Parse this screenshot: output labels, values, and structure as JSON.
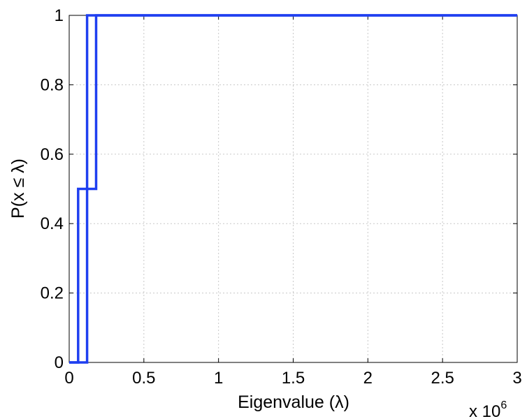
{
  "chart_data": {
    "type": "line",
    "xlabel": "Eigenvalue (λ)",
    "ylabel": "P(x ≤ λ)",
    "x_multiplier_base": "x 10",
    "x_multiplier_exp": "6",
    "xlim": [
      0,
      3
    ],
    "ylim": [
      0,
      1
    ],
    "xticks": [
      0,
      0.5,
      1,
      1.5,
      2,
      2.5,
      3
    ],
    "xtick_labels": [
      "0",
      "0.5",
      "1",
      "1.5",
      "2",
      "2.5",
      "3"
    ],
    "yticks": [
      0,
      0.2,
      0.4,
      0.6,
      0.8,
      1
    ],
    "ytick_labels": [
      "0",
      "0.2",
      "0.4",
      "0.6",
      "0.8",
      "1"
    ],
    "grid": true,
    "series": [
      {
        "color": "#1f3ff0",
        "x": [
          0,
          0.06,
          0.06,
          0.12,
          0.12,
          3
        ],
        "y": [
          0,
          0,
          0.5,
          0.5,
          1,
          1
        ]
      },
      {
        "color": "#1f3ff0",
        "x": [
          0,
          0.12,
          0.12,
          0.18,
          0.18,
          3
        ],
        "y": [
          0,
          0,
          0.5,
          0.5,
          1,
          1
        ]
      }
    ]
  }
}
